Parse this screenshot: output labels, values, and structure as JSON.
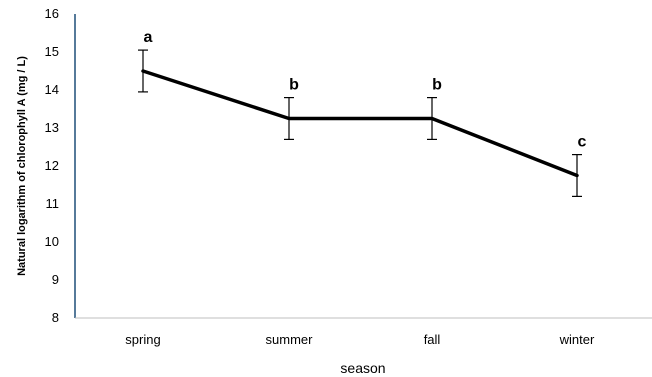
{
  "chart_data": {
    "type": "line",
    "title": "",
    "xlabel": "season",
    "ylabel": "Natural logarithm of chlorophyll A (mg / L)",
    "categories": [
      "spring",
      "summer",
      "fall",
      "winter"
    ],
    "series": [
      {
        "values": [
          14.5,
          13.25,
          13.25,
          11.75
        ],
        "error": [
          0.55,
          0.55,
          0.55,
          0.55
        ],
        "significance_labels": [
          "a",
          "b",
          "b",
          "c"
        ]
      }
    ],
    "ylim": [
      8,
      16
    ],
    "yticks": [
      "8",
      "9",
      "10",
      "11",
      "12",
      "13",
      "14",
      "15",
      "16"
    ],
    "grid": false,
    "colors": {
      "line": "#000000",
      "axis": "#1f4e79",
      "xaxis": "#bfbfbf"
    }
  }
}
